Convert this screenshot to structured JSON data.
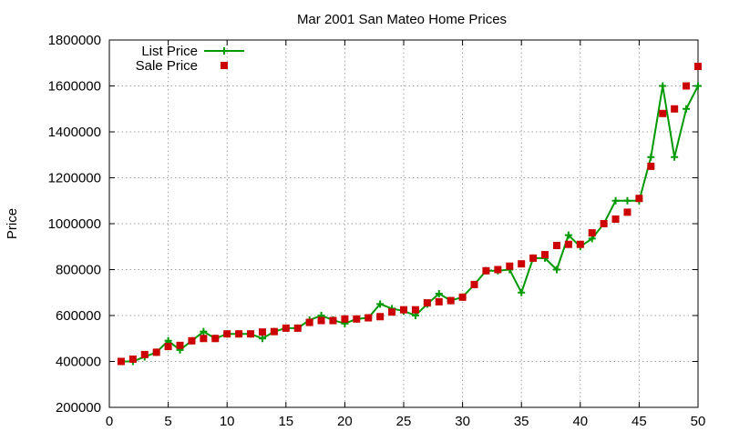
{
  "chart_data": {
    "type": "line",
    "title": "Mar 2001 San Mateo Home Prices",
    "xlabel": "",
    "ylabel": "Price",
    "xlim": [
      0,
      50
    ],
    "ylim": [
      200000,
      1800000
    ],
    "x_ticks": [
      "0",
      "5",
      "10",
      "15",
      "20",
      "25",
      "30",
      "35",
      "40",
      "45",
      "50"
    ],
    "y_ticks": [
      "200000",
      "400000",
      "600000",
      "800000",
      "1000000",
      "1200000",
      "1400000",
      "1600000",
      "1800000"
    ],
    "grid": true,
    "legend_position": "top-left",
    "x": [
      1,
      2,
      3,
      4,
      5,
      6,
      7,
      8,
      9,
      10,
      11,
      12,
      13,
      14,
      15,
      16,
      17,
      18,
      19,
      20,
      21,
      22,
      23,
      24,
      25,
      26,
      27,
      28,
      29,
      30,
      31,
      32,
      33,
      34,
      35,
      36,
      37,
      38,
      39,
      40,
      41,
      42,
      43,
      44,
      45,
      46,
      47,
      48,
      49,
      50
    ],
    "series": [
      {
        "name": "List Price",
        "style": "line-plus",
        "color": "#009900",
        "values": [
          400000,
          400000,
          420000,
          440000,
          490000,
          450000,
          490000,
          530000,
          500000,
          520000,
          520000,
          520000,
          500000,
          530000,
          545000,
          545000,
          580000,
          600000,
          580000,
          565000,
          585000,
          590000,
          650000,
          630000,
          620000,
          600000,
          650000,
          695000,
          665000,
          680000,
          735000,
          795000,
          795000,
          800000,
          700000,
          850000,
          850000,
          800000,
          950000,
          900000,
          935000,
          1000000,
          1100000,
          1100000,
          1100000,
          1290000,
          1600000,
          1290000,
          1500000,
          1600000
        ]
      },
      {
        "name": "Sale Price",
        "style": "square",
        "color": "#cc0000",
        "values": [
          400000,
          410000,
          430000,
          440000,
          465000,
          470000,
          490000,
          500000,
          500000,
          520000,
          520000,
          520000,
          528000,
          530000,
          545000,
          545000,
          570000,
          578000,
          578000,
          585000,
          585000,
          590000,
          595000,
          615000,
          625000,
          625000,
          655000,
          660000,
          665000,
          680000,
          735000,
          795000,
          800000,
          815000,
          825000,
          850000,
          865000,
          905000,
          910000,
          910000,
          960000,
          1000000,
          1020000,
          1050000,
          1110000,
          1250000,
          1480000,
          1500000,
          1600000,
          1685000
        ]
      }
    ]
  }
}
